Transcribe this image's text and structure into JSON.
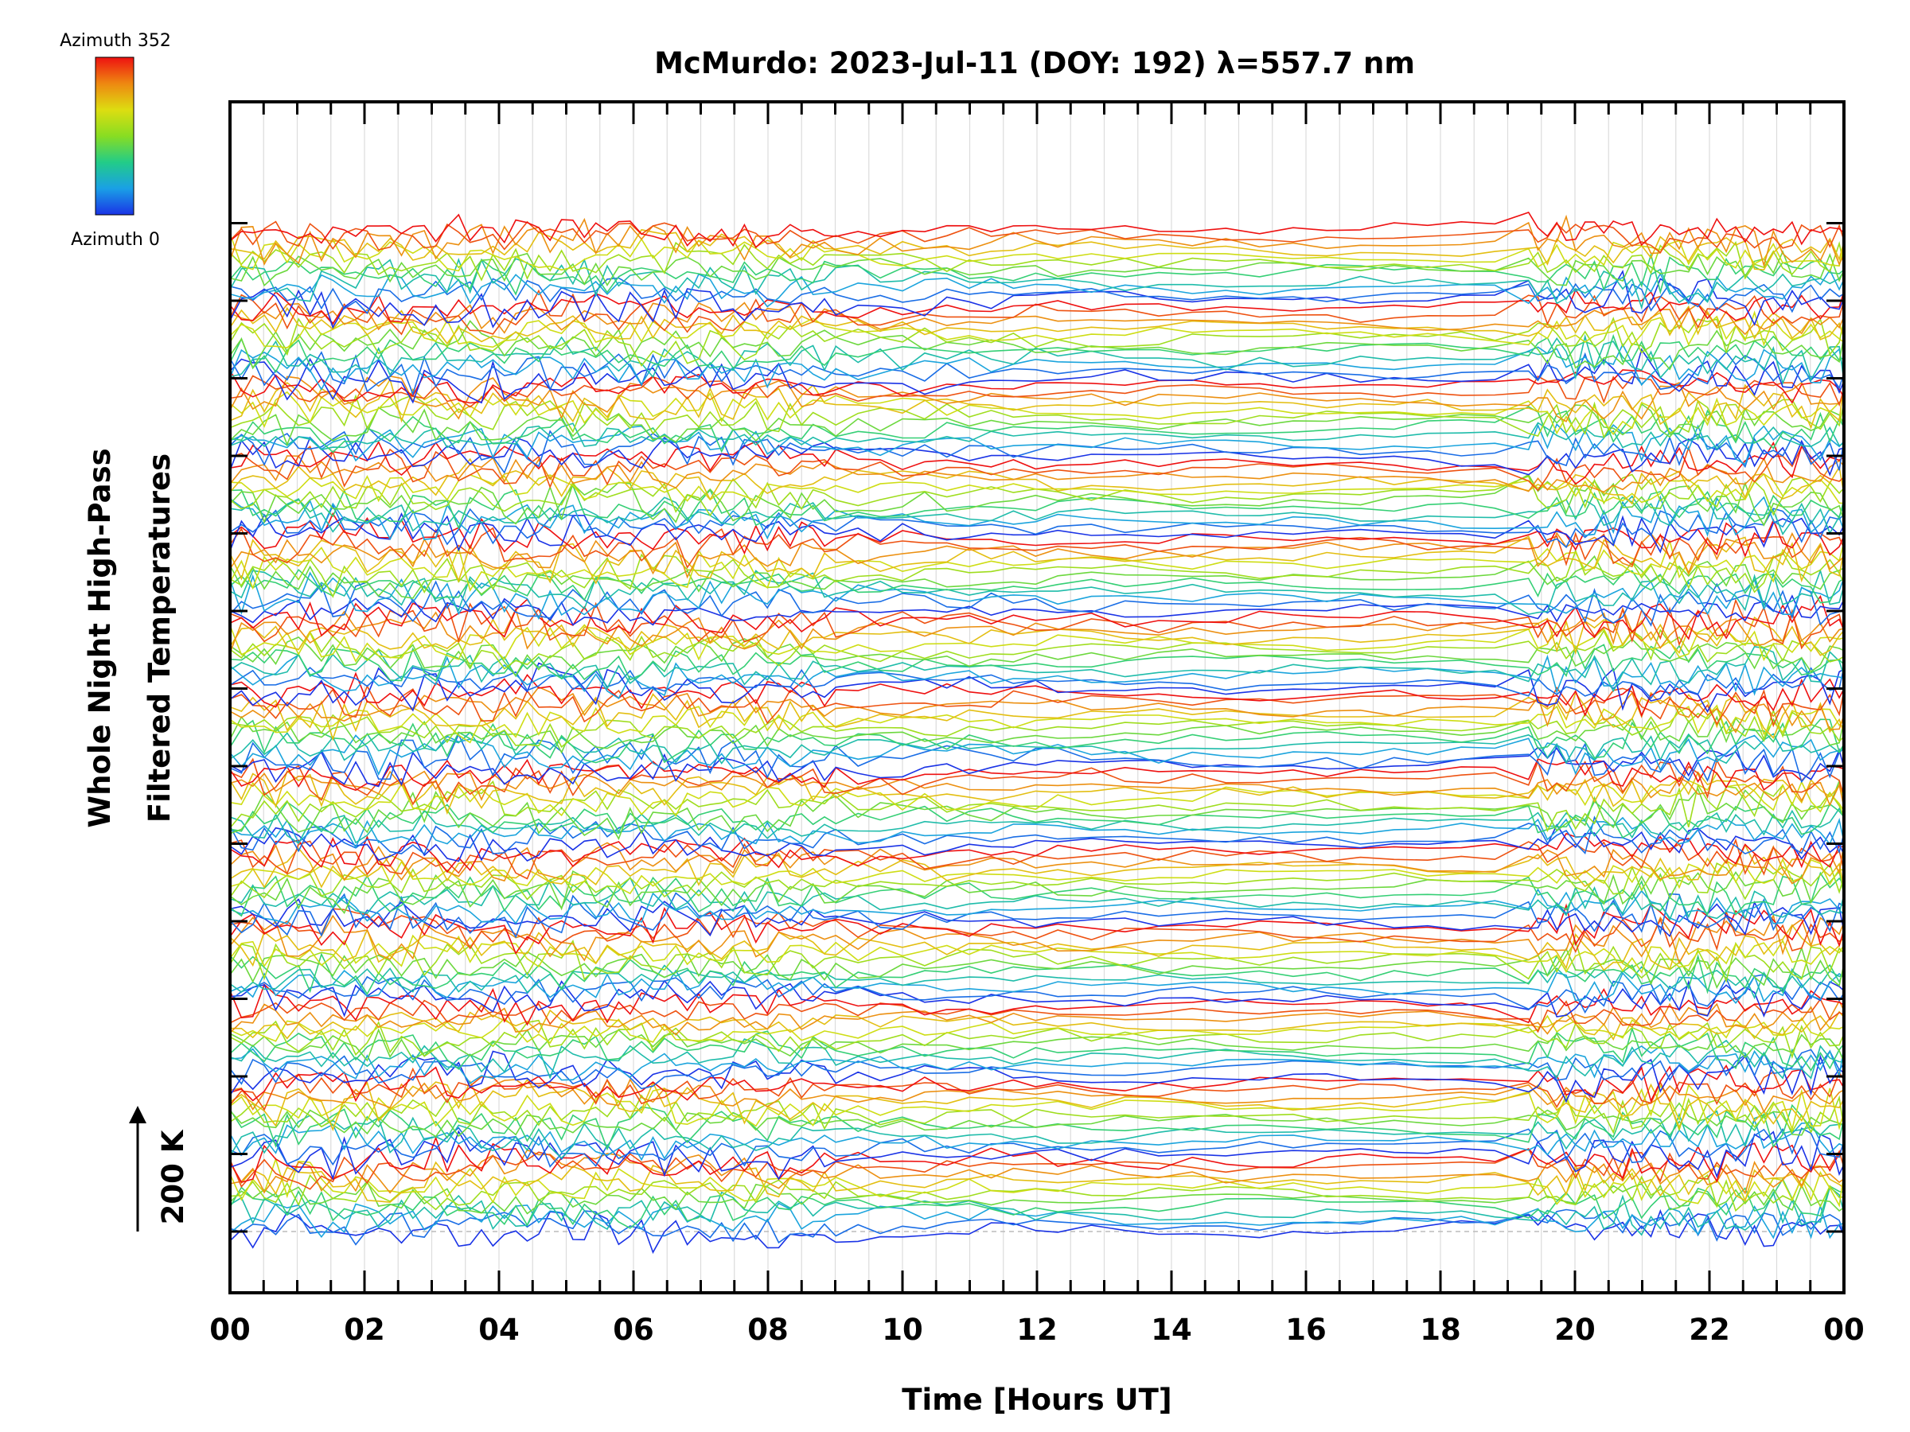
{
  "chart_data": {
    "type": "line",
    "title": "McMurdo: 2023-Jul-11 (DOY: 192) λ=557.7 nm",
    "ylabel_line1": "Whole Night High-Pass",
    "ylabel_line2": "Filtered Temperatures",
    "xlabel": "Time [Hours UT]",
    "x_ticks": [
      "00",
      "02",
      "04",
      "06",
      "08",
      "10",
      "12",
      "14",
      "16",
      "18",
      "20",
      "22",
      "00"
    ],
    "xlim": [
      0,
      24
    ],
    "scale_bar": {
      "label": "200 K",
      "value_K": 200
    },
    "colorbar": {
      "top_label": "Azimuth 352",
      "bottom_label": "Azimuth 0",
      "min": 0,
      "max": 352,
      "colors": [
        "#1a33e6",
        "#1aa0e6",
        "#22cc88",
        "#88dd22",
        "#dddd11",
        "#ee8811",
        "#ee1111"
      ]
    },
    "groups": 13,
    "azimuths_per_group": 12,
    "azimuth_step_deg": 32,
    "group_spacing_K": 200,
    "noise_profile": {
      "note": "relative fluctuation amplitude vs UT hour",
      "hours": [
        0,
        5,
        8,
        9,
        12,
        19,
        19.3,
        24
      ],
      "amplitude": [
        1.0,
        0.9,
        0.8,
        0.55,
        0.35,
        0.2,
        0.9,
        1.0
      ]
    }
  }
}
